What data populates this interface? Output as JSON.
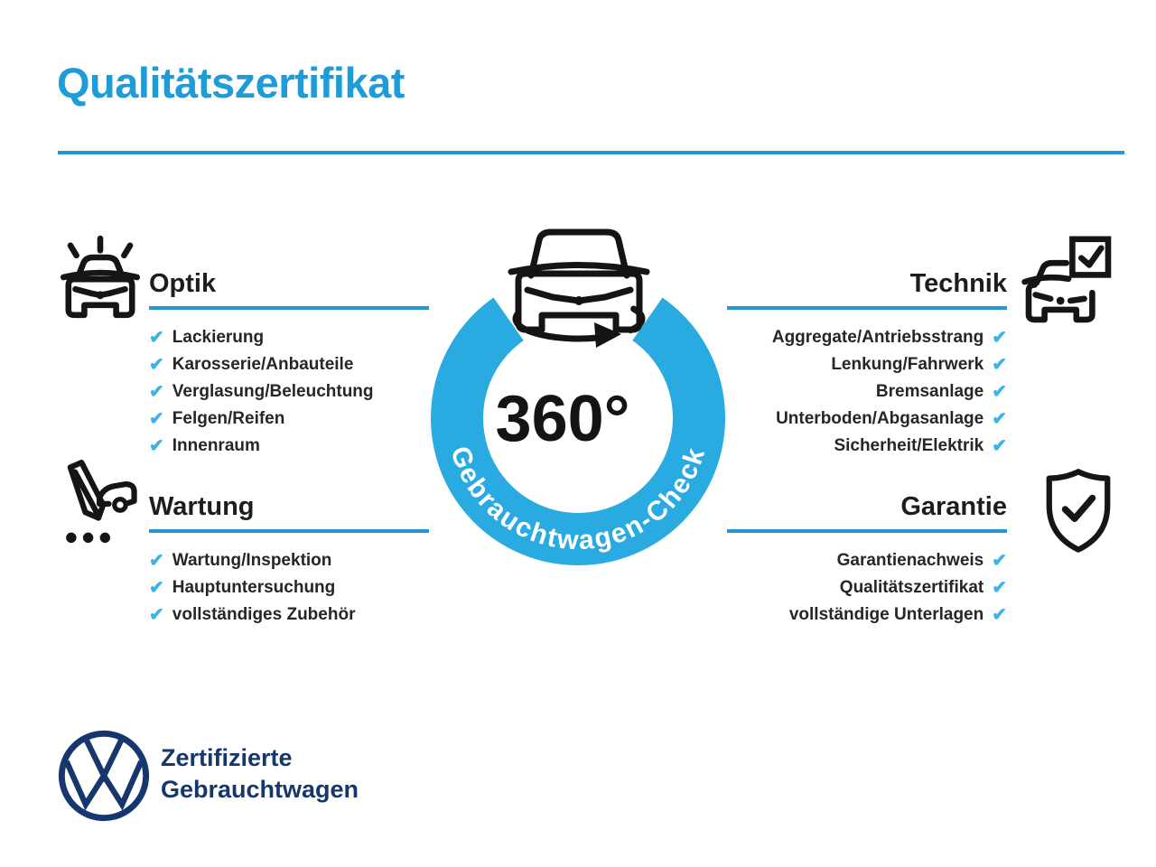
{
  "title": "Qualitätszertifikat",
  "checkmark": "✔",
  "colors": {
    "accent_blue": "#1E9CD8",
    "ring_blue": "#29ABE2",
    "check_blue": "#3BB3E6",
    "heading_dark": "#1D1D1B",
    "navy": "#16366E"
  },
  "badge": {
    "degrees": "360°",
    "ring_label": "Gebrauchtwagen-Check",
    "icon": "car-rotation-icon"
  },
  "sections": [
    {
      "id": "optik",
      "title": "Optik",
      "icon": "car-shine-icon",
      "align": "left",
      "items": [
        "Lackierung",
        "Karosserie/Anbauteile",
        "Verglasung/Beleuchtung",
        "Felgen/Reifen",
        "Innenraum"
      ]
    },
    {
      "id": "technik",
      "title": "Technik",
      "icon": "car-checkbox-icon",
      "align": "right",
      "items": [
        "Aggregate/Antriebsstrang",
        "Lenkung/Fahrwerk",
        "Bremsanlage",
        "Unterboden/Abgasanlage",
        "Sicherheit/Elektrik"
      ]
    },
    {
      "id": "wartung",
      "title": "Wartung",
      "icon": "pencil-car-icon",
      "align": "left",
      "items": [
        "Wartung/Inspektion",
        "Hauptuntersuchung",
        "vollständiges Zubehör"
      ]
    },
    {
      "id": "garantie",
      "title": "Garantie",
      "icon": "shield-check-icon",
      "align": "right",
      "items": [
        "Garantienachweis",
        "Qualitätszertifikat",
        "vollständige Unterlagen"
      ]
    }
  ],
  "footer": {
    "logo": "vw-logo",
    "line1": "Zertifizierte",
    "line2": "Gebrauchtwagen"
  }
}
